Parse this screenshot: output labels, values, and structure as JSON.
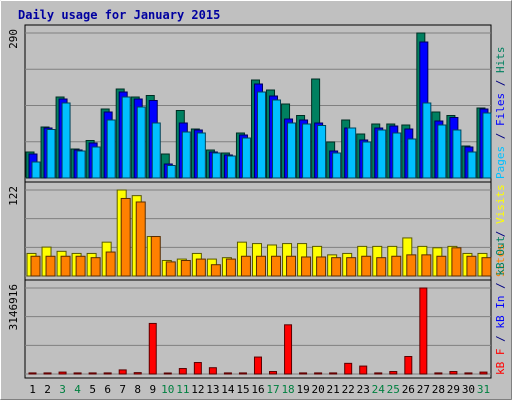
{
  "chart_data": {
    "type": "bar",
    "title": "Daily usage for January 2015",
    "categories": [
      "1",
      "2",
      "3",
      "4",
      "5",
      "6",
      "7",
      "8",
      "9",
      "10",
      "11",
      "12",
      "13",
      "14",
      "15",
      "16",
      "17",
      "18",
      "19",
      "20",
      "21",
      "22",
      "23",
      "24",
      "25",
      "26",
      "27",
      "28",
      "29",
      "30",
      "31"
    ],
    "weekend_days": [
      "3",
      "4",
      "10",
      "11",
      "17",
      "18",
      "24",
      "25",
      "31"
    ],
    "panels": [
      {
        "id": "hits",
        "max_label": "290",
        "ylim": [
          0,
          290
        ],
        "side_labels": [
          {
            "text": "Pages",
            "color": "#00c0ff"
          },
          {
            "text": " / ",
            "color": "#000080"
          },
          {
            "text": "Files",
            "color": "#0000ff"
          },
          {
            "text": " / ",
            "color": "#000080"
          },
          {
            "text": "Hits",
            "color": "#008060"
          }
        ],
        "series": [
          {
            "name": "Hits",
            "color": "#008060",
            "values": [
              52,
              102,
              162,
              58,
              75,
              138,
              178,
              162,
              165,
              48,
              135,
              98,
              56,
              50,
              90,
              196,
              176,
              148,
              125,
              198,
              72,
              116,
              88,
              108,
              108,
              106,
              290,
              132,
              125,
              64,
              140
            ]
          },
          {
            "name": "Files",
            "color": "#0000ff",
            "values": [
              48,
              100,
              158,
              56,
              70,
              132,
              172,
              158,
              155,
              28,
              110,
              96,
              52,
              46,
              86,
              188,
              164,
              118,
              116,
              110,
              54,
              100,
              76,
              100,
              104,
              98,
              272,
              114,
              121,
              62,
              138
            ]
          },
          {
            "name": "Pages",
            "color": "#00c0ff",
            "values": [
              32,
              97,
              150,
              54,
              62,
              116,
              162,
              142,
              110,
              25,
              92,
              90,
              50,
              44,
              80,
              172,
              156,
              110,
              108,
              105,
              50,
              100,
              72,
              96,
              90,
              78,
              150,
              106,
              96,
              52,
              130
            ]
          }
        ]
      },
      {
        "id": "visits",
        "max_label": "122",
        "ylim": [
          0,
          122
        ],
        "side_labels": [
          {
            "text": "Sites",
            "color": "#ff8000"
          },
          {
            "text": " / ",
            "color": "#000080"
          },
          {
            "text": "Visits",
            "color": "#ffff00"
          }
        ],
        "series": [
          {
            "name": "Visits",
            "color": "#ffff00",
            "values": [
              32,
              41,
              35,
              32,
              32,
              48,
              122,
              114,
              56,
              22,
              24,
              32,
              24,
              26,
              48,
              46,
              44,
              46,
              46,
              42,
              30,
              32,
              42,
              42,
              42,
              54,
              42,
              40,
              42,
              32,
              32
            ]
          },
          {
            "name": "Sites",
            "color": "#ff8000",
            "values": [
              28,
              28,
              28,
              28,
              26,
              34,
              110,
              105,
              56,
              20,
              22,
              24,
              16,
              24,
              28,
              28,
              28,
              28,
              27,
              27,
              26,
              26,
              28,
              26,
              28,
              30,
              30,
              28,
              40,
              28,
              26
            ]
          }
        ]
      },
      {
        "id": "kbytes",
        "max_label": "3146916",
        "ylim": [
          0,
          3146916
        ],
        "side_labels": [
          {
            "text": "kB F",
            "color": "#ff0000"
          },
          {
            "text": " / ",
            "color": "#000080"
          },
          {
            "text": "kB In",
            "color": "#0000ff"
          },
          {
            "text": " / ",
            "color": "#000080"
          },
          {
            "text": "kB Out",
            "color": "#008060"
          }
        ],
        "series": [
          {
            "name": "kB F",
            "color": "#ff0000",
            "values": [
              40000,
              40000,
              70000,
              40000,
              40000,
              40000,
              150000,
              50000,
              1850000,
              20000,
              200000,
              420000,
              230000,
              40000,
              40000,
              620000,
              90000,
              1800000,
              40000,
              40000,
              40000,
              390000,
              290000,
              40000,
              90000,
              640000,
              3146916,
              40000,
              90000,
              40000,
              70000
            ]
          }
        ]
      }
    ]
  }
}
